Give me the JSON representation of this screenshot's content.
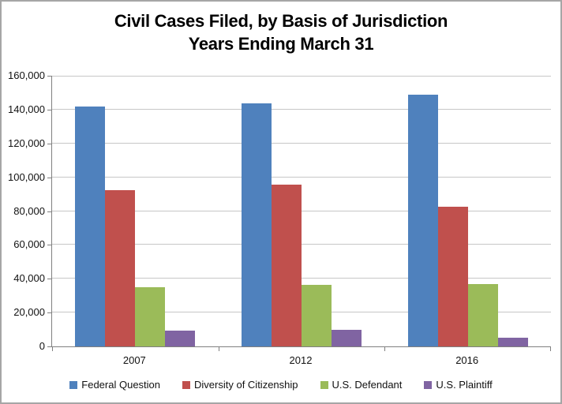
{
  "title": {
    "line1": "Civil Cases Filed, by Basis of Jurisdiction",
    "line2": "Years Ending March 31"
  },
  "chart_data": {
    "type": "bar",
    "title": "Civil Cases Filed, by Basis of Jurisdiction",
    "subtitle": "Years Ending March 31",
    "categories": [
      "2007",
      "2012",
      "2016"
    ],
    "series": [
      {
        "name": "Federal Question",
        "color": "#4F81BD",
        "values": [
          142000,
          143500,
          149000
        ]
      },
      {
        "name": "Diversity of Citizenship",
        "color": "#C0504D",
        "values": [
          92500,
          95500,
          82500
        ]
      },
      {
        "name": "U.S. Defendant",
        "color": "#9BBB59",
        "values": [
          35000,
          36500,
          37000
        ]
      },
      {
        "name": "U.S. Plaintiff",
        "color": "#8064A2",
        "values": [
          9500,
          10000,
          5000
        ]
      }
    ],
    "xlabel": "",
    "ylabel": "",
    "ylim": [
      0,
      160000
    ],
    "ytick_step": 20000,
    "ytick_labels": [
      "0",
      "20,000",
      "40,000",
      "60,000",
      "80,000",
      "100,000",
      "120,000",
      "140,000",
      "160,000"
    ],
    "grid": true,
    "legend_position": "bottom"
  },
  "style": {
    "gridline_color": "#c6c6c6",
    "axis_color": "#808080",
    "frame_border_color": "#a6a6a6",
    "text_color": "#111111"
  }
}
